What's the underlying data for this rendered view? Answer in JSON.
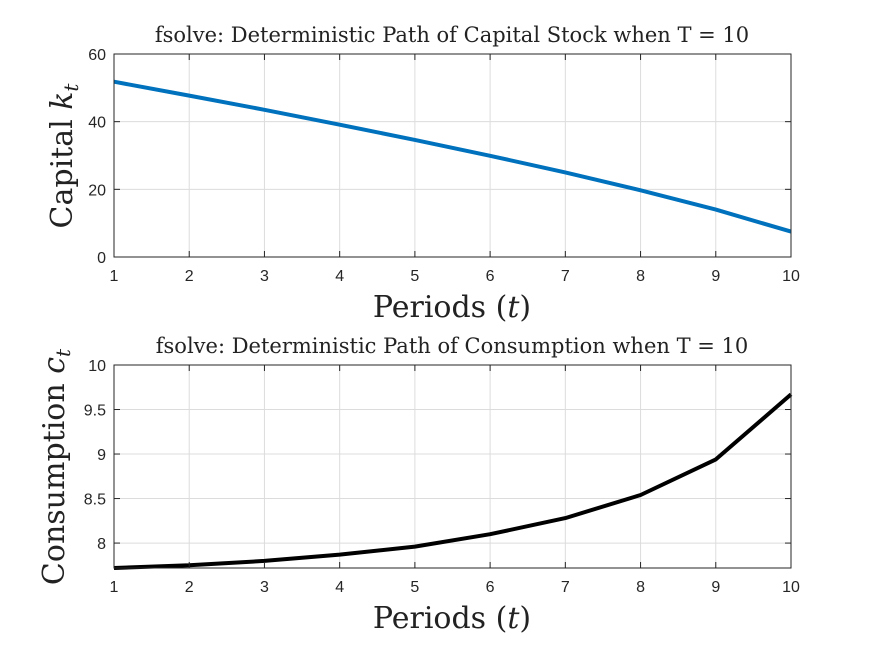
{
  "figure": {
    "background": "#ffffff"
  },
  "chart_data": [
    {
      "type": "line",
      "title": "fsolve: Deterministic Path of Capital Stock when T = 10",
      "xlabel_text": "Periods (",
      "xlabel_var": "t",
      "xlabel_close": ")",
      "ylabel_text": "Capital ",
      "ylabel_var": "k",
      "ylabel_sub": "t",
      "x": [
        1,
        2,
        3,
        4,
        5,
        6,
        7,
        8,
        9,
        10
      ],
      "xlim": [
        1,
        10
      ],
      "ylim": [
        0,
        60
      ],
      "xticks": [
        "1",
        "2",
        "3",
        "4",
        "5",
        "6",
        "7",
        "8",
        "9",
        "10"
      ],
      "yticks": [
        "0",
        "20",
        "40",
        "60"
      ],
      "grid": true,
      "series": [
        {
          "values": [
            51.8,
            47.7,
            43.5,
            39.1,
            34.6,
            29.9,
            25.0,
            19.7,
            14.0,
            7.5
          ],
          "color": "#0072BD"
        }
      ]
    },
    {
      "type": "line",
      "title": "fsolve: Deterministic Path of Consumption when T = 10",
      "xlabel_text": "Periods (",
      "xlabel_var": "t",
      "xlabel_close": ")",
      "ylabel_text": "Consumption ",
      "ylabel_var": "c",
      "ylabel_sub": "t",
      "x": [
        1,
        2,
        3,
        4,
        5,
        6,
        7,
        8,
        9,
        10
      ],
      "xlim": [
        1,
        10
      ],
      "ylim": [
        7.72,
        10
      ],
      "xticks": [
        "1",
        "2",
        "3",
        "4",
        "5",
        "6",
        "7",
        "8",
        "9",
        "10"
      ],
      "yticks": [
        "8",
        "8.5",
        "9",
        "9.5",
        "10"
      ],
      "grid": true,
      "series": [
        {
          "values": [
            7.72,
            7.75,
            7.8,
            7.87,
            7.96,
            8.1,
            8.28,
            8.54,
            8.94,
            9.67
          ],
          "color": "#000000"
        }
      ]
    }
  ]
}
